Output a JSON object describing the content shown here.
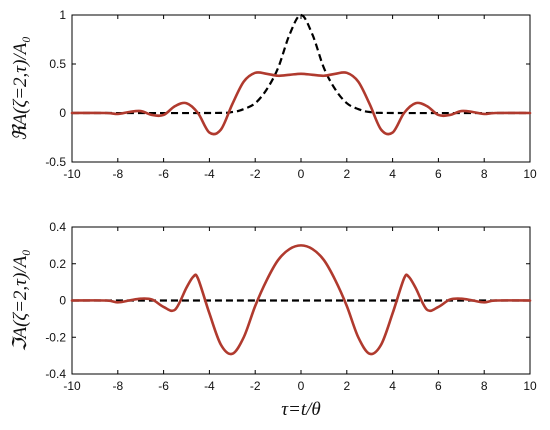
{
  "chart_data": [
    {
      "type": "line",
      "ylabel": "ℜA(ζ=2,τ)/A₀",
      "xlim": [
        -10,
        10
      ],
      "ylim": [
        -0.5,
        1
      ],
      "xticks": [
        "-10",
        "-8",
        "-6",
        "-4",
        "-2",
        "0",
        "2",
        "4",
        "6",
        "8",
        "10"
      ],
      "yticks": [
        "-0.5",
        "0",
        "0.5",
        "1"
      ],
      "grid": false,
      "series": [
        {
          "style": "dashed",
          "color": "#000000",
          "x": [
            -10,
            -4,
            -3,
            -2.5,
            -2,
            -1.5,
            -1,
            -0.5,
            0,
            0.5,
            1,
            1.5,
            2,
            2.5,
            3,
            4,
            10
          ],
          "y": [
            0,
            0,
            0.01,
            0.04,
            0.1,
            0.24,
            0.46,
            0.8,
            1.0,
            0.8,
            0.46,
            0.24,
            0.1,
            0.04,
            0.01,
            0,
            0
          ]
        },
        {
          "style": "solid",
          "color": "#b03a2e",
          "x": [
            -10,
            -8.5,
            -8,
            -7.5,
            -7,
            -6.5,
            -6,
            -5.5,
            -5,
            -4.5,
            -4,
            -3.5,
            -3,
            -2.5,
            -2,
            -1.5,
            -1,
            -0.5,
            0,
            0.5,
            1,
            1.5,
            2,
            2.5,
            3,
            3.5,
            4,
            4.5,
            5,
            5.5,
            6,
            6.5,
            7,
            7.5,
            8,
            8.5,
            10
          ],
          "y": [
            0,
            0,
            -0.01,
            0.01,
            0.02,
            -0.02,
            -0.02,
            0.07,
            0.1,
            0.0,
            -0.2,
            -0.17,
            0.09,
            0.32,
            0.41,
            0.4,
            0.38,
            0.39,
            0.4,
            0.39,
            0.38,
            0.4,
            0.41,
            0.32,
            0.09,
            -0.17,
            -0.2,
            0.0,
            0.1,
            0.07,
            -0.02,
            -0.02,
            0.02,
            0.01,
            -0.01,
            0,
            0
          ]
        }
      ]
    },
    {
      "type": "line",
      "ylabel": "ℑA(ζ=2,τ)/A₀",
      "xlabel": "τ=t/θ",
      "xlim": [
        -10,
        10
      ],
      "ylim": [
        -0.4,
        0.4
      ],
      "xticks": [
        "-10",
        "-8",
        "-6",
        "-4",
        "-2",
        "0",
        "2",
        "4",
        "6",
        "8",
        "10"
      ],
      "yticks": [
        "-0.4",
        "-0.2",
        "0",
        "0.2",
        "0.4"
      ],
      "grid": false,
      "series": [
        {
          "style": "dashed",
          "color": "#000000",
          "x": [
            -10,
            10
          ],
          "y": [
            0,
            0
          ]
        },
        {
          "style": "solid",
          "color": "#b03a2e",
          "x": [
            -10,
            -8.5,
            -8,
            -7.5,
            -7,
            -6.5,
            -6,
            -5.5,
            -5,
            -4.7,
            -4.5,
            -4,
            -3.5,
            -3,
            -2.5,
            -2,
            -1.5,
            -1,
            -0.5,
            0,
            0.5,
            1,
            1.5,
            2,
            2.5,
            3,
            3.5,
            4,
            4.5,
            4.7,
            5,
            5.5,
            6,
            6.5,
            7,
            7.5,
            8,
            8.5,
            10
          ],
          "y": [
            0,
            0,
            -0.01,
            0.0,
            0.01,
            0.005,
            -0.035,
            -0.05,
            0.07,
            0.13,
            0.12,
            -0.07,
            -0.24,
            -0.29,
            -0.2,
            -0.03,
            0.11,
            0.22,
            0.28,
            0.3,
            0.28,
            0.22,
            0.11,
            -0.03,
            -0.2,
            -0.29,
            -0.24,
            -0.07,
            0.12,
            0.13,
            0.07,
            -0.05,
            -0.035,
            0.005,
            0.01,
            0.0,
            -0.01,
            0,
            0
          ]
        }
      ]
    }
  ]
}
